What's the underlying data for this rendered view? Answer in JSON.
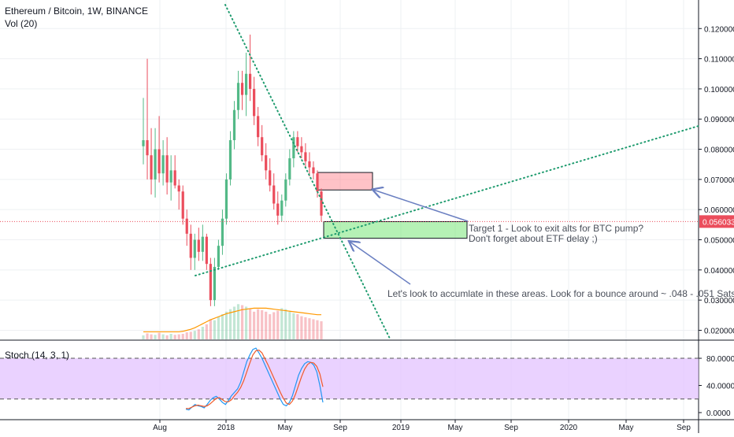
{
  "header": {
    "title": "Ethereum / Bitcoin, 1W, BINANCE",
    "volume_label": "Vol (20)"
  },
  "colors": {
    "up": "#53b987",
    "down": "#eb4d5c",
    "trendline": "#1e9b6e",
    "price_line": "#eb4d5c",
    "stoch_k": "#2196f3",
    "stoch_d": "#f15a29",
    "stoch_band": "#e1bfff",
    "volume_ma": "#ff9800",
    "arrow": "#6a7fc1"
  },
  "chart_data": [
    {
      "type": "candlestick",
      "title": "Ethereum / Bitcoin, 1W, BINANCE",
      "y_axis_ticks": [
        "0.120000",
        "0.110000",
        "0.100000",
        "0.090000",
        "0.080000",
        "0.070000",
        "0.060000",
        "0.050000",
        "0.040000",
        "0.030000",
        "0.020000"
      ],
      "ylim": [
        0.017,
        0.123
      ],
      "x_axis_ticks": [
        "Aug",
        "2018",
        "May",
        "Sep",
        "2019",
        "May",
        "Sep",
        "2020",
        "May",
        "Sep"
      ],
      "current_price": "0.056033",
      "candles": [
        {
          "o": 0.081,
          "h": 0.097,
          "l": 0.075,
          "c": 0.083
        },
        {
          "o": 0.083,
          "h": 0.11,
          "l": 0.07,
          "c": 0.078
        },
        {
          "o": 0.078,
          "h": 0.087,
          "l": 0.065,
          "c": 0.07
        },
        {
          "o": 0.07,
          "h": 0.087,
          "l": 0.064,
          "c": 0.08
        },
        {
          "o": 0.08,
          "h": 0.091,
          "l": 0.069,
          "c": 0.072
        },
        {
          "o": 0.072,
          "h": 0.083,
          "l": 0.068,
          "c": 0.078
        },
        {
          "o": 0.078,
          "h": 0.084,
          "l": 0.065,
          "c": 0.069
        },
        {
          "o": 0.069,
          "h": 0.078,
          "l": 0.063,
          "c": 0.073
        },
        {
          "o": 0.073,
          "h": 0.078,
          "l": 0.067,
          "c": 0.068
        },
        {
          "o": 0.068,
          "h": 0.07,
          "l": 0.06,
          "c": 0.066
        },
        {
          "o": 0.066,
          "h": 0.068,
          "l": 0.055,
          "c": 0.057
        },
        {
          "o": 0.057,
          "h": 0.06,
          "l": 0.048,
          "c": 0.052
        },
        {
          "o": 0.052,
          "h": 0.055,
          "l": 0.04,
          "c": 0.044
        },
        {
          "o": 0.044,
          "h": 0.052,
          "l": 0.04,
          "c": 0.05
        },
        {
          "o": 0.05,
          "h": 0.054,
          "l": 0.043,
          "c": 0.046
        },
        {
          "o": 0.046,
          "h": 0.055,
          "l": 0.043,
          "c": 0.051
        },
        {
          "o": 0.051,
          "h": 0.052,
          "l": 0.04,
          "c": 0.042
        },
        {
          "o": 0.042,
          "h": 0.044,
          "l": 0.028,
          "c": 0.03
        },
        {
          "o": 0.03,
          "h": 0.044,
          "l": 0.028,
          "c": 0.041
        },
        {
          "o": 0.041,
          "h": 0.05,
          "l": 0.04,
          "c": 0.048
        },
        {
          "o": 0.048,
          "h": 0.06,
          "l": 0.045,
          "c": 0.057
        },
        {
          "o": 0.057,
          "h": 0.072,
          "l": 0.055,
          "c": 0.07
        },
        {
          "o": 0.07,
          "h": 0.086,
          "l": 0.068,
          "c": 0.083
        },
        {
          "o": 0.083,
          "h": 0.096,
          "l": 0.08,
          "c": 0.093
        },
        {
          "o": 0.093,
          "h": 0.106,
          "l": 0.09,
          "c": 0.102
        },
        {
          "o": 0.102,
          "h": 0.106,
          "l": 0.093,
          "c": 0.098
        },
        {
          "o": 0.098,
          "h": 0.112,
          "l": 0.091,
          "c": 0.105
        },
        {
          "o": 0.105,
          "h": 0.118,
          "l": 0.096,
          "c": 0.1
        },
        {
          "o": 0.1,
          "h": 0.104,
          "l": 0.088,
          "c": 0.091
        },
        {
          "o": 0.091,
          "h": 0.094,
          "l": 0.081,
          "c": 0.084
        },
        {
          "o": 0.084,
          "h": 0.088,
          "l": 0.076,
          "c": 0.078
        },
        {
          "o": 0.078,
          "h": 0.082,
          "l": 0.07,
          "c": 0.073
        },
        {
          "o": 0.073,
          "h": 0.077,
          "l": 0.066,
          "c": 0.068
        },
        {
          "o": 0.068,
          "h": 0.072,
          "l": 0.06,
          "c": 0.062
        },
        {
          "o": 0.062,
          "h": 0.066,
          "l": 0.055,
          "c": 0.058
        },
        {
          "o": 0.058,
          "h": 0.065,
          "l": 0.056,
          "c": 0.063
        },
        {
          "o": 0.063,
          "h": 0.072,
          "l": 0.061,
          "c": 0.07
        },
        {
          "o": 0.07,
          "h": 0.08,
          "l": 0.068,
          "c": 0.077
        },
        {
          "o": 0.077,
          "h": 0.086,
          "l": 0.074,
          "c": 0.084
        },
        {
          "o": 0.084,
          "h": 0.086,
          "l": 0.079,
          "c": 0.081
        },
        {
          "o": 0.081,
          "h": 0.084,
          "l": 0.077,
          "c": 0.079
        },
        {
          "o": 0.079,
          "h": 0.082,
          "l": 0.074,
          "c": 0.076
        },
        {
          "o": 0.076,
          "h": 0.079,
          "l": 0.071,
          "c": 0.074
        },
        {
          "o": 0.074,
          "h": 0.076,
          "l": 0.07,
          "c": 0.072
        },
        {
          "o": 0.072,
          "h": 0.073,
          "l": 0.064,
          "c": 0.066
        },
        {
          "o": 0.066,
          "h": 0.067,
          "l": 0.056,
          "c": 0.058
        }
      ],
      "volume": [
        0.8,
        1.2,
        1,
        0.9,
        1.3,
        1,
        0.8,
        1.1,
        0.9,
        1,
        1.1,
        1.4,
        1.5,
        1.7,
        2,
        2.5,
        3,
        4,
        3.8,
        4.5,
        5,
        5.5,
        6,
        6.5,
        7,
        6.8,
        6.5,
        6,
        5.5,
        6,
        5.8,
        5.5,
        5,
        5.4,
        5.7,
        6.2,
        6,
        5.5,
        5.2,
        5,
        4.6,
        4.4,
        4.2,
        4,
        3.8,
        3.6
      ],
      "volume_ma": [
        1.5,
        1.5,
        1.5,
        1.5,
        1.5,
        1.5,
        1.5,
        1.5,
        1.5,
        1.5,
        1.6,
        1.8,
        2,
        2.3,
        2.7,
        3.1,
        3.5,
        3.9,
        4.2,
        4.5,
        4.8,
        5.1,
        5.3,
        5.5,
        5.7,
        5.9,
        6,
        6.1,
        6.2,
        6.2,
        6.2,
        6.2,
        6.1,
        6,
        5.9,
        5.8,
        5.7,
        5.6,
        5.5,
        5.4,
        5.3,
        5.2,
        5.1,
        5,
        4.9,
        4.9
      ]
    },
    {
      "type": "line",
      "title": "Stoch (14, 3, 1)",
      "y_axis_ticks": [
        "80.0000",
        "40.0000",
        "0.0000"
      ],
      "ylim": [
        -5,
        100
      ],
      "bands": [
        20,
        80
      ],
      "series": [
        {
          "values": [
            5,
            4,
            8,
            12,
            10,
            9,
            7,
            12,
            18,
            22,
            24,
            20,
            15,
            12,
            18,
            25,
            30,
            35,
            45,
            60,
            75,
            85,
            93,
            95,
            88,
            80,
            70,
            60,
            50,
            40,
            30,
            20,
            12,
            10,
            15,
            25,
            40,
            55,
            65,
            72,
            75,
            74,
            70,
            60,
            40,
            15
          ]
        },
        {
          "values": [
            6,
            6,
            8,
            10,
            11,
            10,
            9,
            10,
            13,
            17,
            21,
            22,
            19,
            16,
            16,
            19,
            25,
            30,
            37,
            47,
            60,
            73,
            85,
            91,
            92,
            88,
            79,
            70,
            60,
            50,
            40,
            30,
            21,
            14,
            12,
            17,
            27,
            40,
            53,
            64,
            71,
            74,
            73,
            68,
            57,
            38
          ]
        }
      ]
    }
  ],
  "annotations": {
    "target_line1": "Target 1 - Look to exit alts for BTC pump?",
    "target_line2": "Don't forget about ETF delay ;)",
    "accumulate": "Let's look to accumlate in these areas. Look for a bounce around ~ .048 - .051 Sats."
  }
}
